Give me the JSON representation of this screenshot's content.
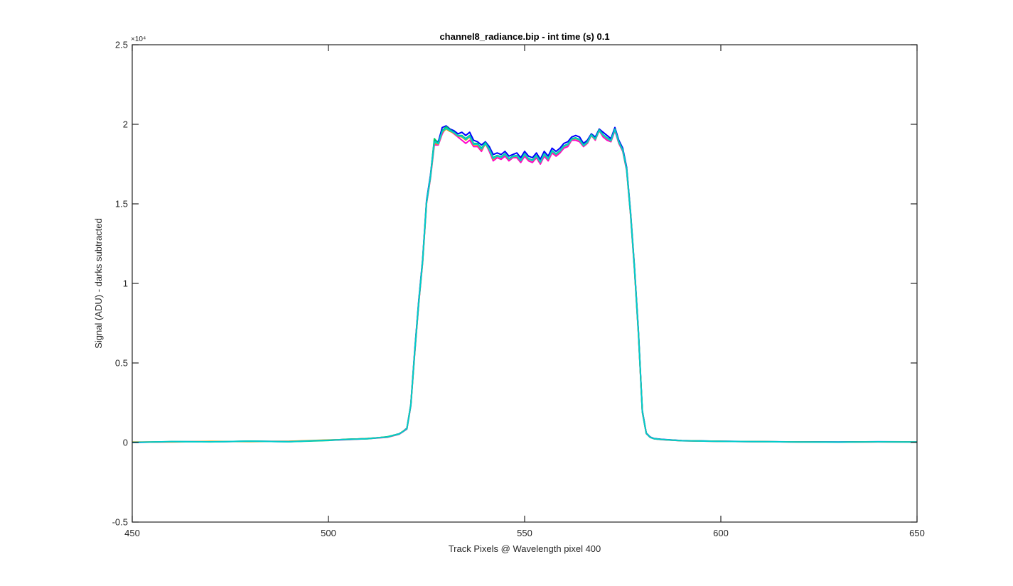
{
  "chart_data": {
    "type": "line",
    "title": "channel8_radiance.bip - int time (s) 0.1",
    "xlabel": "Track Pixels @ Wavelength pixel 400",
    "ylabel": "Signal (ADU) - darks subtracted",
    "xlim": [
      450,
      650
    ],
    "ylim": [
      -5000,
      25000
    ],
    "y_exponent_label": "×10⁴",
    "x_ticks": [
      450,
      500,
      550,
      600,
      650
    ],
    "x_tick_labels": [
      "450",
      "500",
      "550",
      "600",
      "650"
    ],
    "y_ticks": [
      -5000,
      0,
      5000,
      10000,
      15000,
      20000,
      25000
    ],
    "y_tick_labels": [
      "-0.5",
      "0",
      "0.5",
      "1",
      "1.5",
      "2",
      "2.5"
    ],
    "grid": false,
    "legend": "none",
    "x": [
      450,
      460,
      470,
      480,
      490,
      500,
      505,
      510,
      515,
      518,
      519,
      520,
      521,
      522,
      523,
      524,
      525,
      526,
      527,
      528,
      529,
      530,
      531,
      532,
      533,
      534,
      535,
      536,
      537,
      538,
      539,
      540,
      541,
      542,
      543,
      544,
      545,
      546,
      547,
      548,
      549,
      550,
      551,
      552,
      553,
      554,
      555,
      556,
      557,
      558,
      559,
      560,
      561,
      562,
      563,
      564,
      565,
      566,
      567,
      568,
      569,
      570,
      571,
      572,
      573,
      574,
      575,
      576,
      577,
      578,
      579,
      580,
      581,
      582,
      583,
      585,
      590,
      600,
      610,
      620,
      630,
      640,
      650
    ],
    "series": [
      {
        "color": "#0000FF",
        "values": [
          0,
          50,
          50,
          80,
          60,
          150,
          200,
          250,
          350,
          550,
          700,
          900,
          2400,
          5800,
          8900,
          11500,
          15200,
          16800,
          19000,
          18900,
          19800,
          19900,
          19700,
          19600,
          19400,
          19500,
          19300,
          19500,
          19000,
          18900,
          18700,
          18900,
          18600,
          18100,
          18200,
          18100,
          18300,
          18000,
          18100,
          18200,
          17900,
          18300,
          18000,
          17900,
          18200,
          17800,
          18300,
          18000,
          18500,
          18300,
          18500,
          18800,
          18900,
          19200,
          19300,
          19200,
          18800,
          19000,
          19400,
          19200,
          19700,
          19500,
          19300,
          19100,
          19800,
          19000,
          18500,
          17300,
          14500,
          11000,
          7000,
          2000,
          600,
          350,
          250,
          200,
          120,
          80,
          60,
          40,
          30,
          50,
          40
        ]
      },
      {
        "color": "#FF00CC",
        "values": [
          20,
          40,
          60,
          70,
          70,
          140,
          180,
          240,
          330,
          520,
          680,
          850,
          2300,
          5600,
          8700,
          11300,
          15000,
          16600,
          18700,
          18700,
          19400,
          19800,
          19600,
          19400,
          19200,
          19000,
          18800,
          19000,
          18600,
          18600,
          18300,
          18800,
          18300,
          17700,
          17900,
          17800,
          18000,
          17700,
          17900,
          17900,
          17600,
          18000,
          17700,
          17600,
          17900,
          17500,
          18000,
          17700,
          18200,
          18000,
          18200,
          18500,
          18600,
          19000,
          19000,
          18900,
          18600,
          18800,
          19300,
          19000,
          19600,
          19200,
          19000,
          18900,
          19600,
          18800,
          18300,
          17100,
          14300,
          10800,
          6800,
          1900,
          560,
          320,
          230,
          180,
          110,
          70,
          50,
          30,
          20,
          40,
          30
        ]
      },
      {
        "color": "#00CC66",
        "values": [
          10,
          60,
          40,
          90,
          50,
          130,
          210,
          230,
          360,
          540,
          690,
          880,
          2350,
          5700,
          8800,
          11400,
          15100,
          16700,
          19100,
          18800,
          19600,
          19850,
          19650,
          19500,
          19300,
          19300,
          19100,
          19300,
          18800,
          18800,
          18500,
          18850,
          18450,
          17900,
          18050,
          17950,
          18150,
          17850,
          18000,
          18050,
          17750,
          18150,
          17850,
          17750,
          18050,
          17650,
          18150,
          17850,
          18350,
          18150,
          18350,
          18650,
          18750,
          19100,
          19150,
          19050,
          18700,
          18900,
          19350,
          19100,
          19650,
          19350,
          19150,
          19000,
          19700,
          18900,
          18400,
          17200,
          14400,
          10900,
          6900,
          1950,
          580,
          330,
          240,
          190,
          115,
          75,
          55,
          35,
          25,
          45,
          35
        ]
      },
      {
        "color": "#FF9900",
        "values": [
          30,
          30,
          70,
          60,
          80,
          160,
          190,
          260,
          340,
          530,
          710,
          870,
          2380,
          5650,
          8750,
          11350,
          15050,
          16650,
          18800,
          18750,
          19500,
          19700,
          19550,
          19450,
          19250,
          19200,
          19000,
          19200,
          18700,
          18700,
          18400,
          18750,
          18400,
          17800,
          18000,
          17900,
          18100,
          17800,
          17950,
          18000,
          17700,
          18100,
          17800,
          17700,
          18000,
          17600,
          18100,
          17800,
          18300,
          18100,
          18300,
          18600,
          18700,
          19050,
          19100,
          19000,
          18650,
          18850,
          19300,
          19050,
          19600,
          19300,
          19100,
          18950,
          19650,
          18850,
          18350,
          17150,
          14350,
          10850,
          6850,
          1920,
          570,
          325,
          235,
          185,
          112,
          72,
          52,
          32,
          22,
          42,
          32
        ]
      },
      {
        "color": "#00CCCC",
        "values": [
          15,
          55,
          45,
          85,
          55,
          145,
          195,
          245,
          345,
          535,
          695,
          865,
          2360,
          5680,
          8780,
          11380,
          15080,
          16680,
          18900,
          18780,
          19550,
          19750,
          19600,
          19480,
          19280,
          19250,
          19050,
          19250,
          18750,
          18750,
          18450,
          18800,
          18420,
          17850,
          18020,
          17920,
          18120,
          17820,
          17970,
          18020,
          17720,
          18120,
          17820,
          17720,
          18020,
          17620,
          18120,
          17820,
          18320,
          18120,
          18320,
          18620,
          18720,
          19070,
          19120,
          19020,
          18670,
          18870,
          19320,
          19070,
          19620,
          19320,
          19120,
          18970,
          19670,
          18870,
          18370,
          17170,
          14370,
          10870,
          6870,
          1930,
          575,
          328,
          238,
          188,
          113,
          73,
          53,
          33,
          23,
          43,
          33
        ]
      }
    ]
  }
}
